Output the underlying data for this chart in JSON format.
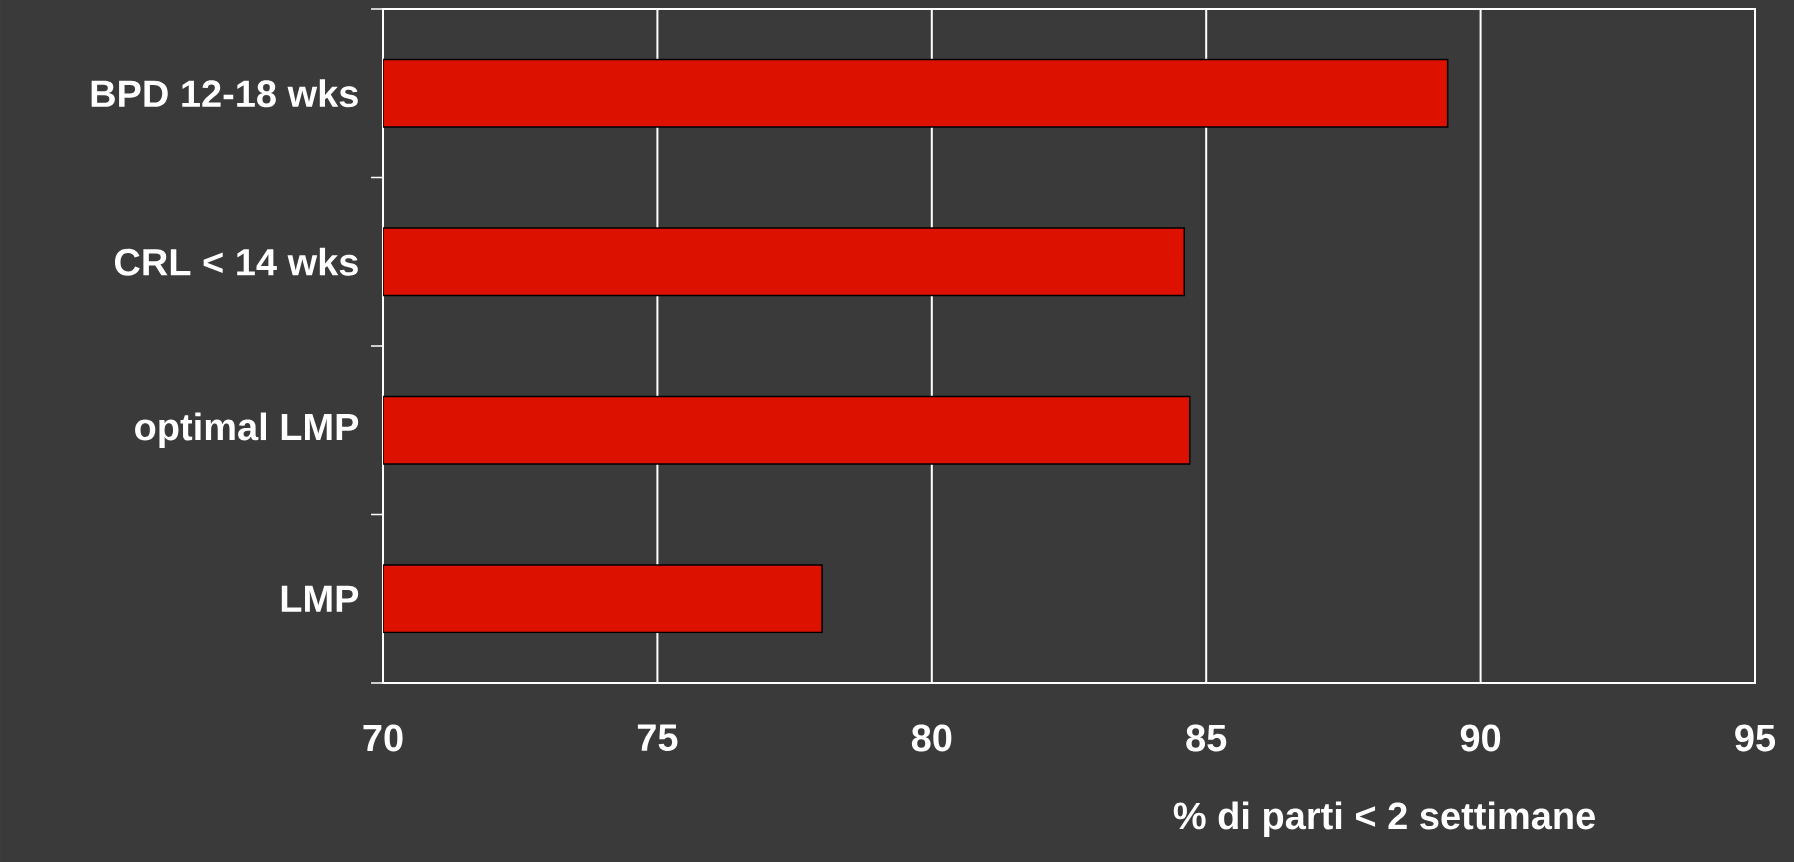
{
  "chart_data": {
    "type": "bar",
    "orientation": "horizontal",
    "categories": [
      "BPD 12-18 wks",
      "CRL < 14 wks",
      "optimal LMP",
      "LMP"
    ],
    "values": [
      89.4,
      84.6,
      84.7,
      78.0
    ],
    "color": "#dd1100",
    "xlabel": "% di parti < 2 settimane",
    "xlim": [
      70,
      95
    ],
    "xticks": [
      70,
      75,
      80,
      85,
      90,
      95
    ],
    "grid": "x"
  }
}
